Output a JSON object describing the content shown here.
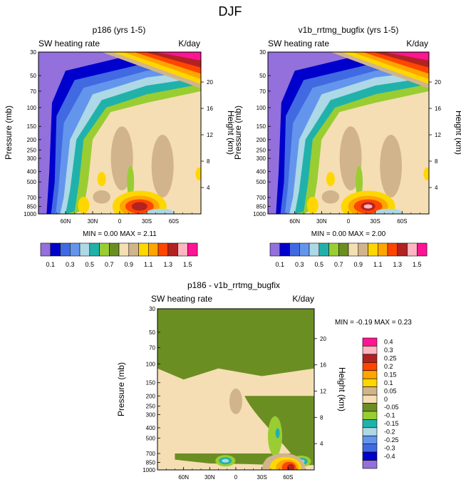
{
  "chart_data": {
    "type": "contour",
    "title": "DJF",
    "colors": {
      "bg_field": "#f3deb8",
      "top_col": "#9370DB",
      "std": [
        "#9370DB",
        "#0000CD",
        "#4169E1",
        "#6495ED",
        "#ADD8E6",
        "#20B2AA",
        "#9ACD32",
        "#6B8E23",
        "#F5DEB3",
        "#D2B48C",
        "#FFD700",
        "#FFA500",
        "#FF4500",
        "#B22222",
        "#FFB6C1",
        "#FF1493"
      ],
      "diff": [
        "#FF1493",
        "#FFB6C1",
        "#B22222",
        "#FF4500",
        "#FFA500",
        "#FFD700",
        "#D2B48C",
        "#F5DEB3",
        "#6B8E23",
        "#9ACD32",
        "#20B2AA",
        "#ADD8E6",
        "#6495ED",
        "#4169E1",
        "#0000CD",
        "#9370DB"
      ]
    },
    "panels": [
      {
        "title": "p186 (yrs 1-5)",
        "left_label": "SW heating rate",
        "right_label": "K/day",
        "ylabel": "Pressure (mb)",
        "y2label": "Height (km)",
        "pressure_ticks": [
          "30",
          "50",
          "70",
          "100",
          "150",
          "200",
          "250",
          "300",
          "400",
          "500",
          "700",
          "850",
          "1000"
        ],
        "height_ticks": [
          "20",
          "16",
          "12",
          "8",
          "4"
        ],
        "lat_ticks": [
          "60N",
          "30N",
          "0",
          "30S",
          "60S"
        ],
        "min_max": "MIN =  0.00  MAX =  2.11",
        "field_max": 2.11
      },
      {
        "title": "v1b_rrtmg_bugfix (yrs 1-5)",
        "left_label": "SW heating rate",
        "right_label": "K/day",
        "ylabel": "Pressure (mb)",
        "y2label": "Height (km)",
        "pressure_ticks": [
          "30",
          "50",
          "70",
          "100",
          "150",
          "200",
          "250",
          "300",
          "400",
          "500",
          "700",
          "850",
          "1000"
        ],
        "height_ticks": [
          "20",
          "16",
          "12",
          "8",
          "4"
        ],
        "lat_ticks": [
          "60N",
          "30N",
          "0",
          "30S",
          "60S"
        ],
        "min_max": "MIN =  0.00  MAX =  2.00",
        "field_max": 2.0
      },
      {
        "title": "p186 - v1b_rrtmg_bugfix",
        "left_label": "SW heating rate",
        "right_label": "K/day",
        "ylabel": "Pressure (mb)",
        "y2label": "Height (km)",
        "pressure_ticks": [
          "30",
          "50",
          "70",
          "100",
          "150",
          "200",
          "250",
          "300",
          "400",
          "500",
          "700",
          "850",
          "1000"
        ],
        "height_ticks": [
          "20",
          "16",
          "12",
          "8",
          "4"
        ],
        "lat_ticks": [
          "60N",
          "30N",
          "0",
          "30S",
          "60S"
        ],
        "min_max": "MIN = -0.19  MAX =  0.23",
        "min_value": -0.19,
        "max_value": 0.23
      }
    ],
    "colorbar_std": {
      "levels": [
        "0.1",
        "0.3",
        "0.5",
        "0.7",
        "0.9",
        "1.1",
        "1.3",
        "1.5"
      ],
      "orientation": "horizontal",
      "n_colors": 16
    },
    "colorbar_diff": {
      "levels": [
        "0.4",
        "0.3",
        "0.25",
        "0.2",
        "0.15",
        "0.1",
        "0.05",
        "0",
        "-0.05",
        "-0.1",
        "-0.15",
        "-0.2",
        "-0.25",
        "-0.3",
        "-0.4"
      ],
      "orientation": "vertical",
      "n_colors": 16
    }
  }
}
